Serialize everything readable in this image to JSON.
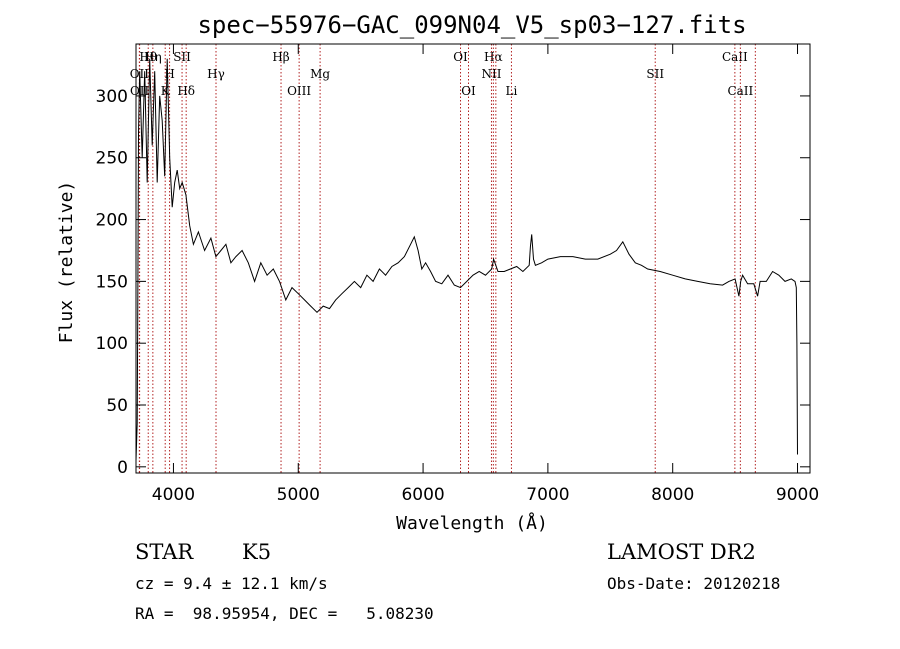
{
  "chart_data": {
    "type": "line",
    "title": "spec−55976−GAC_099N04_V5_sp03−127.fits",
    "xlabel": "Wavelength (Å)",
    "ylabel": "Flux (relative)",
    "xlim": [
      3700,
      9100
    ],
    "ylim": [
      -5,
      342
    ],
    "xticks": [
      4000,
      5000,
      6000,
      7000,
      8000,
      9000
    ],
    "yticks": [
      0,
      50,
      100,
      150,
      200,
      250,
      300
    ],
    "grid": false,
    "series": [
      {
        "x": [
          3700,
          3710,
          3715,
          3720,
          3730,
          3750,
          3770,
          3790,
          3810,
          3830,
          3850,
          3870,
          3890,
          3910,
          3930,
          3950,
          3970,
          3990,
          4010,
          4030,
          4050,
          4070,
          4100,
          4130,
          4160,
          4200,
          4250,
          4300,
          4340,
          4380,
          4420,
          4460,
          4500,
          4550,
          4600,
          4650,
          4700,
          4750,
          4800,
          4850,
          4900,
          4950,
          5000,
          5050,
          5100,
          5150,
          5200,
          5250,
          5300,
          5350,
          5400,
          5450,
          5500,
          5550,
          5600,
          5650,
          5700,
          5750,
          5800,
          5850,
          5900,
          5930,
          5960,
          5990,
          6020,
          6060,
          6100,
          6150,
          6200,
          6250,
          6300,
          6350,
          6400,
          6450,
          6500,
          6550,
          6565,
          6600,
          6650,
          6700,
          6750,
          6800,
          6850,
          6860,
          6870,
          6885,
          6900,
          6950,
          7000,
          7100,
          7200,
          7300,
          7400,
          7500,
          7550,
          7600,
          7650,
          7700,
          7750,
          7800,
          7900,
          8000,
          8100,
          8200,
          8300,
          8400,
          8450,
          8500,
          8530,
          8545,
          8560,
          8600,
          8650,
          8680,
          8700,
          8750,
          8800,
          8850,
          8900,
          8950,
          8980,
          8990,
          8995,
          9000
        ],
        "y": [
          5,
          35,
          150,
          270,
          320,
          250,
          320,
          230,
          330,
          260,
          320,
          230,
          300,
          280,
          235,
          330,
          250,
          210,
          230,
          240,
          225,
          230,
          220,
          195,
          180,
          190,
          175,
          185,
          170,
          175,
          180,
          165,
          170,
          175,
          165,
          150,
          165,
          155,
          160,
          150,
          135,
          145,
          140,
          135,
          130,
          125,
          130,
          128,
          135,
          140,
          145,
          150,
          145,
          155,
          150,
          160,
          155,
          162,
          165,
          170,
          180,
          186,
          175,
          160,
          165,
          158,
          150,
          148,
          155,
          147,
          145,
          150,
          155,
          158,
          155,
          160,
          168,
          158,
          158,
          160,
          162,
          158,
          163,
          178,
          188,
          168,
          163,
          165,
          168,
          170,
          170,
          168,
          168,
          172,
          175,
          182,
          172,
          165,
          163,
          160,
          158,
          155,
          152,
          150,
          148,
          147,
          150,
          152,
          138,
          150,
          155,
          148,
          148,
          138,
          150,
          150,
          158,
          155,
          150,
          152,
          150,
          145,
          100,
          10
        ]
      }
    ],
    "line_markers": [
      {
        "label": "OII",
        "x": 3727,
        "row": 1
      },
      {
        "label": "OII",
        "x": 3729,
        "row": 2
      },
      {
        "label": "Hθ",
        "x": 3798,
        "row": 0
      },
      {
        "label": "Hη",
        "x": 3835,
        "row": 0
      },
      {
        "label": "K",
        "x": 3934,
        "row": 2
      },
      {
        "label": "SII",
        "x": 4069,
        "row": 0
      },
      {
        "label": "H",
        "x": 3969,
        "row": 1
      },
      {
        "label": "Hδ",
        "x": 4102,
        "row": 2
      },
      {
        "label": "Hγ",
        "x": 4341,
        "row": 1
      },
      {
        "label": "Hβ",
        "x": 4862,
        "row": 0
      },
      {
        "label": "OIII",
        "x": 5007,
        "row": 2
      },
      {
        "label": "Mg",
        "x": 5175,
        "row": 1
      },
      {
        "label": "OI",
        "x": 6300,
        "row": 0
      },
      {
        "label": "OI",
        "x": 6364,
        "row": 2
      },
      {
        "label": "Hα",
        "x": 6563,
        "row": 0
      },
      {
        "label": "NII",
        "x": 6548,
        "row": 1
      },
      {
        "label": "NII",
        "x": 6583,
        "row": -1
      },
      {
        "label": "Li",
        "x": 6708,
        "row": 2
      },
      {
        "label": "SII",
        "x": 7860,
        "row": 1
      },
      {
        "label": "CaII",
        "x": 8498,
        "row": 0
      },
      {
        "label": "CaII",
        "x": 8542,
        "row": 2
      },
      {
        "label": "CaII",
        "x": 8662,
        "row": -1
      }
    ]
  },
  "info": {
    "class_label": "STAR",
    "subclass_label": "K5",
    "cz_text": "cz = 9.4 ± 12.1 km/s",
    "radec_text": "RA =  98.95954, DEC =   5.08230",
    "survey_text": "LAMOST DR2",
    "obsdate_text": "Obs-Date: 20120218"
  }
}
